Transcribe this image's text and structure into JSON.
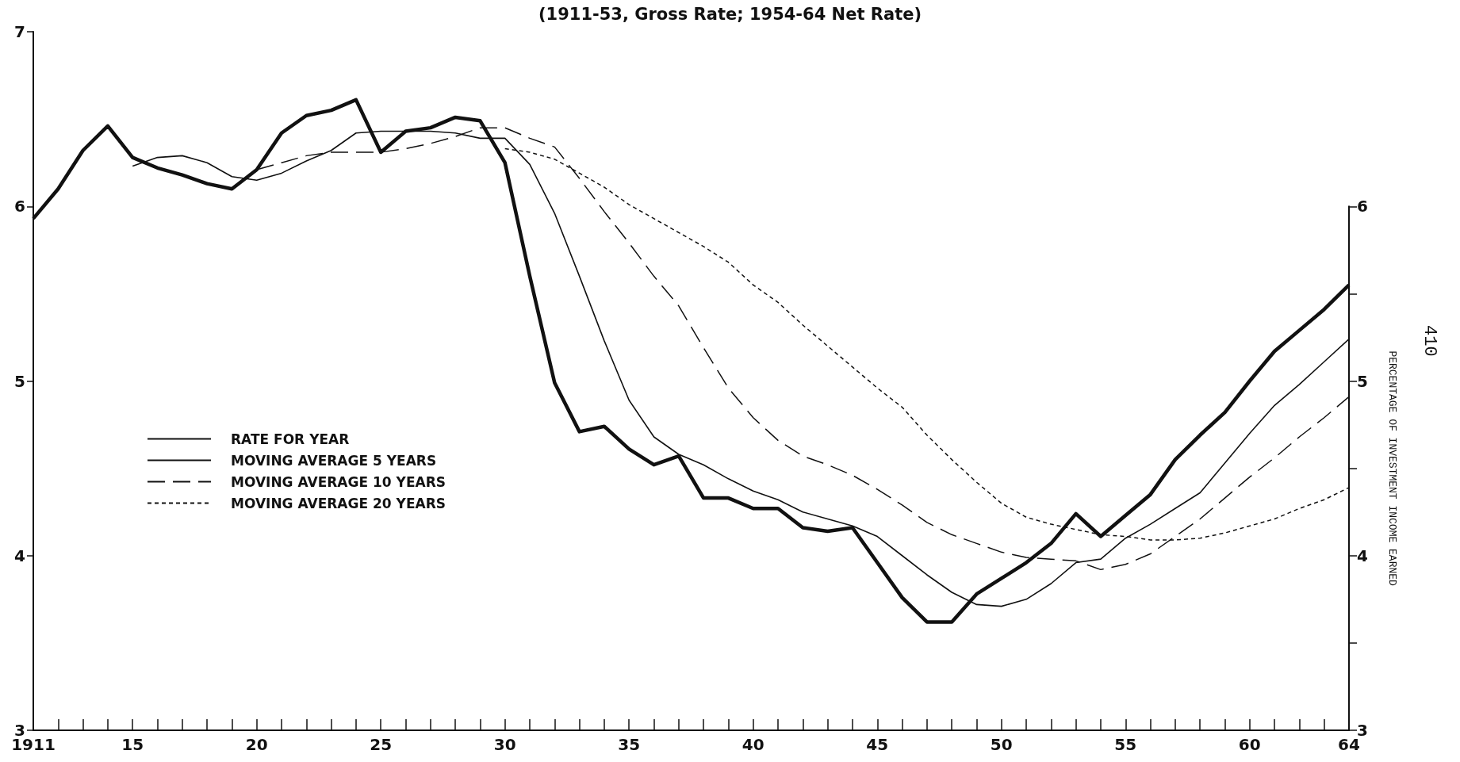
{
  "chart_data": {
    "type": "line",
    "title": "(1911-53, Gross Rate; 1954-64 Net Rate)",
    "y2label": "PERCENTAGE OF INVESTMENT INCOME EARNED",
    "annotations": [
      "410"
    ],
    "x": [
      1911,
      1912,
      1913,
      1914,
      1915,
      1916,
      1917,
      1918,
      1919,
      1920,
      1921,
      1922,
      1923,
      1924,
      1925,
      1926,
      1927,
      1928,
      1929,
      1930,
      1931,
      1932,
      1933,
      1934,
      1935,
      1936,
      1937,
      1938,
      1939,
      1940,
      1941,
      1942,
      1943,
      1944,
      1945,
      1946,
      1947,
      1948,
      1949,
      1950,
      1951,
      1952,
      1953,
      1954,
      1955,
      1956,
      1957,
      1958,
      1959,
      1960,
      1961,
      1962,
      1963,
      1964
    ],
    "series": [
      {
        "name": "RATE FOR YEAR",
        "color": "#111111",
        "line_style": "solid",
        "values": [
          5.93,
          6.1,
          6.32,
          6.46,
          6.28,
          6.22,
          6.18,
          6.13,
          6.1,
          6.21,
          6.42,
          6.52,
          6.55,
          6.61,
          6.31,
          6.43,
          6.45,
          6.51,
          6.49,
          6.25,
          5.6,
          4.99,
          4.71,
          4.74,
          4.61,
          4.52,
          4.57,
          4.33,
          4.33,
          4.27,
          4.27,
          4.16,
          4.14,
          4.16,
          3.96,
          3.76,
          3.62,
          3.62,
          3.78,
          3.87,
          3.96,
          4.07,
          4.24,
          4.11,
          4.23,
          4.35,
          4.55,
          4.69,
          4.82,
          5.0,
          5.17,
          5.29,
          5.41,
          5.55
        ]
      },
      {
        "name": "MOVING AVERAGE 5 YEARS",
        "color": "#111111",
        "line_style": "solid",
        "values": [
          null,
          null,
          null,
          null,
          6.23,
          6.28,
          6.29,
          6.25,
          6.17,
          6.15,
          6.19,
          6.26,
          6.32,
          6.42,
          6.43,
          6.43,
          6.43,
          6.42,
          6.39,
          6.39,
          6.24,
          5.96,
          5.6,
          5.23,
          4.89,
          4.68,
          4.58,
          4.52,
          4.44,
          4.37,
          4.32,
          4.25,
          4.21,
          4.17,
          4.11,
          4.0,
          3.89,
          3.79,
          3.72,
          3.71,
          3.75,
          3.84,
          3.96,
          3.98,
          4.1,
          4.18,
          4.27,
          4.36,
          4.53,
          4.7,
          4.86,
          4.98,
          5.11,
          5.24
        ]
      },
      {
        "name": "MOVING AVERAGE 10 YEARS",
        "color": "#111111",
        "line_style": "dashed",
        "values": [
          null,
          null,
          null,
          null,
          null,
          null,
          null,
          null,
          null,
          6.21,
          6.25,
          6.29,
          6.31,
          6.31,
          6.31,
          6.33,
          6.36,
          6.4,
          6.45,
          6.45,
          6.39,
          6.34,
          6.16,
          5.97,
          5.79,
          5.6,
          5.43,
          5.19,
          4.96,
          4.79,
          4.66,
          4.57,
          4.52,
          4.46,
          4.38,
          4.29,
          4.19,
          4.12,
          4.07,
          4.02,
          3.99,
          3.98,
          3.97,
          3.92,
          3.95,
          4.01,
          4.11,
          4.21,
          4.33,
          4.45,
          4.56,
          4.68,
          4.79,
          4.91
        ]
      },
      {
        "name": "MOVING AVERAGE 20 YEARS",
        "color": "#111111",
        "line_style": "dotted",
        "values": [
          null,
          null,
          null,
          null,
          null,
          null,
          null,
          null,
          null,
          null,
          null,
          null,
          null,
          null,
          null,
          null,
          null,
          null,
          null,
          6.33,
          6.31,
          6.27,
          6.19,
          6.11,
          6.01,
          5.93,
          5.85,
          5.77,
          5.68,
          5.55,
          5.45,
          5.32,
          5.2,
          5.08,
          4.96,
          4.85,
          4.69,
          4.55,
          4.42,
          4.3,
          4.22,
          4.18,
          4.15,
          4.12,
          4.11,
          4.09,
          4.09,
          4.1,
          4.13,
          4.17,
          4.21,
          4.27,
          4.32,
          4.39
        ]
      }
    ],
    "xlim": [
      1911,
      1964
    ],
    "xticks": [
      {
        "value": 1911,
        "label": "1911"
      },
      {
        "value": 1912,
        "label": null
      },
      {
        "value": 1913,
        "label": null
      },
      {
        "value": 1914,
        "label": null
      },
      {
        "value": 1915,
        "label": "15"
      },
      {
        "value": 1916,
        "label": null
      },
      {
        "value": 1917,
        "label": null
      },
      {
        "value": 1918,
        "label": null
      },
      {
        "value": 1919,
        "label": null
      },
      {
        "value": 1920,
        "label": "20"
      },
      {
        "value": 1921,
        "label": null
      },
      {
        "value": 1922,
        "label": null
      },
      {
        "value": 1923,
        "label": null
      },
      {
        "value": 1924,
        "label": null
      },
      {
        "value": 1925,
        "label": "25"
      },
      {
        "value": 1926,
        "label": null
      },
      {
        "value": 1927,
        "label": null
      },
      {
        "value": 1928,
        "label": null
      },
      {
        "value": 1929,
        "label": null
      },
      {
        "value": 1930,
        "label": "30"
      },
      {
        "value": 1931,
        "label": null
      },
      {
        "value": 1932,
        "label": null
      },
      {
        "value": 1933,
        "label": null
      },
      {
        "value": 1934,
        "label": null
      },
      {
        "value": 1935,
        "label": "35"
      },
      {
        "value": 1936,
        "label": null
      },
      {
        "value": 1937,
        "label": null
      },
      {
        "value": 1938,
        "label": null
      },
      {
        "value": 1939,
        "label": null
      },
      {
        "value": 1940,
        "label": "40"
      },
      {
        "value": 1941,
        "label": null
      },
      {
        "value": 1942,
        "label": null
      },
      {
        "value": 1943,
        "label": null
      },
      {
        "value": 1944,
        "label": null
      },
      {
        "value": 1945,
        "label": "45"
      },
      {
        "value": 1946,
        "label": null
      },
      {
        "value": 1947,
        "label": null
      },
      {
        "value": 1948,
        "label": null
      },
      {
        "value": 1949,
        "label": null
      },
      {
        "value": 1950,
        "label": "50"
      },
      {
        "value": 1951,
        "label": null
      },
      {
        "value": 1952,
        "label": null
      },
      {
        "value": 1953,
        "label": null
      },
      {
        "value": 1954,
        "label": null
      },
      {
        "value": 1955,
        "label": "55"
      },
      {
        "value": 1956,
        "label": null
      },
      {
        "value": 1957,
        "label": null
      },
      {
        "value": 1958,
        "label": null
      },
      {
        "value": 1959,
        "label": null
      },
      {
        "value": 1960,
        "label": "60"
      },
      {
        "value": 1961,
        "label": null
      },
      {
        "value": 1962,
        "label": null
      },
      {
        "value": 1963,
        "label": null
      },
      {
        "value": 1964,
        "label": "64"
      }
    ],
    "ylim": [
      3,
      7
    ],
    "yticks": [
      3,
      4,
      5,
      6,
      7
    ],
    "y2lim": [
      3,
      6
    ],
    "y2ticks": [
      3,
      {
        "value": 3.5,
        "label": null
      },
      4,
      {
        "value": 4.5,
        "label": null
      },
      5,
      {
        "value": 5.5,
        "label": null
      },
      6
    ],
    "grid": false,
    "legend": "left",
    "marker": "none"
  }
}
